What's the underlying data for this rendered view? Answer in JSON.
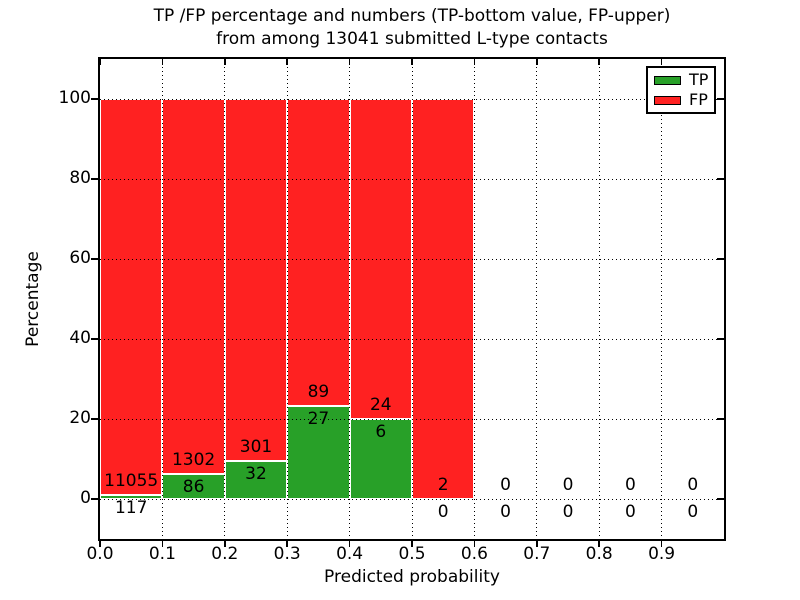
{
  "chart_data": {
    "type": "bar",
    "stacked": true,
    "normalized_to_percent": true,
    "title_line1": "TP /FP percentage and numbers (TP-bottom value, FP-upper)",
    "title_line2": "from among 13041 submitted L-type contacts",
    "xlabel": "Predicted probability",
    "ylabel": "Percentage",
    "total_contacts": 13041,
    "xlim": [
      0.0,
      1.0
    ],
    "ylim": [
      -10,
      110
    ],
    "grid_on": true,
    "grid_style": "dotted",
    "legend_position": "upper right",
    "xticks": [
      {
        "value": 0.0,
        "label": "0.0"
      },
      {
        "value": 0.1,
        "label": "0.1"
      },
      {
        "value": 0.2,
        "label": "0.2"
      },
      {
        "value": 0.3,
        "label": "0.3"
      },
      {
        "value": 0.4,
        "label": "0.4"
      },
      {
        "value": 0.5,
        "label": "0.5"
      },
      {
        "value": 0.6,
        "label": "0.6"
      },
      {
        "value": 0.7,
        "label": "0.7"
      },
      {
        "value": 0.8,
        "label": "0.8"
      },
      {
        "value": 0.9,
        "label": "0.9"
      }
    ],
    "yticks": [
      {
        "value": 0,
        "label": "0"
      },
      {
        "value": 20,
        "label": "20"
      },
      {
        "value": 40,
        "label": "40"
      },
      {
        "value": 60,
        "label": "60"
      },
      {
        "value": 80,
        "label": "80"
      },
      {
        "value": 100,
        "label": "100"
      }
    ],
    "series": [
      {
        "name": "TP",
        "color": "#28a028"
      },
      {
        "name": "FP",
        "color": "#ff2121"
      }
    ],
    "bar_edge_color": "#ffffff",
    "bins": [
      {
        "x0": 0.0,
        "x1": 0.1,
        "tp": 117,
        "fp": 11055,
        "tp_pct": 1.05,
        "fp_pct": 98.95
      },
      {
        "x0": 0.1,
        "x1": 0.2,
        "tp": 86,
        "fp": 1302,
        "tp_pct": 6.2,
        "fp_pct": 93.8
      },
      {
        "x0": 0.2,
        "x1": 0.3,
        "tp": 32,
        "fp": 301,
        "tp_pct": 9.61,
        "fp_pct": 90.39
      },
      {
        "x0": 0.3,
        "x1": 0.4,
        "tp": 27,
        "fp": 89,
        "tp_pct": 23.28,
        "fp_pct": 76.72
      },
      {
        "x0": 0.4,
        "x1": 0.5,
        "tp": 6,
        "fp": 24,
        "tp_pct": 20.0,
        "fp_pct": 80.0
      },
      {
        "x0": 0.5,
        "x1": 0.6,
        "tp": 0,
        "fp": 2,
        "tp_pct": 0.0,
        "fp_pct": 100.0
      },
      {
        "x0": 0.6,
        "x1": 0.7,
        "tp": 0,
        "fp": 0,
        "tp_pct": 0.0,
        "fp_pct": 0.0
      },
      {
        "x0": 0.7,
        "x1": 0.8,
        "tp": 0,
        "fp": 0,
        "tp_pct": 0.0,
        "fp_pct": 0.0
      },
      {
        "x0": 0.8,
        "x1": 0.9,
        "tp": 0,
        "fp": 0,
        "tp_pct": 0.0,
        "fp_pct": 0.0
      },
      {
        "x0": 0.9,
        "x1": 1.0,
        "tp": 0,
        "fp": 0,
        "tp_pct": 0.0,
        "fp_pct": 0.0
      }
    ]
  }
}
